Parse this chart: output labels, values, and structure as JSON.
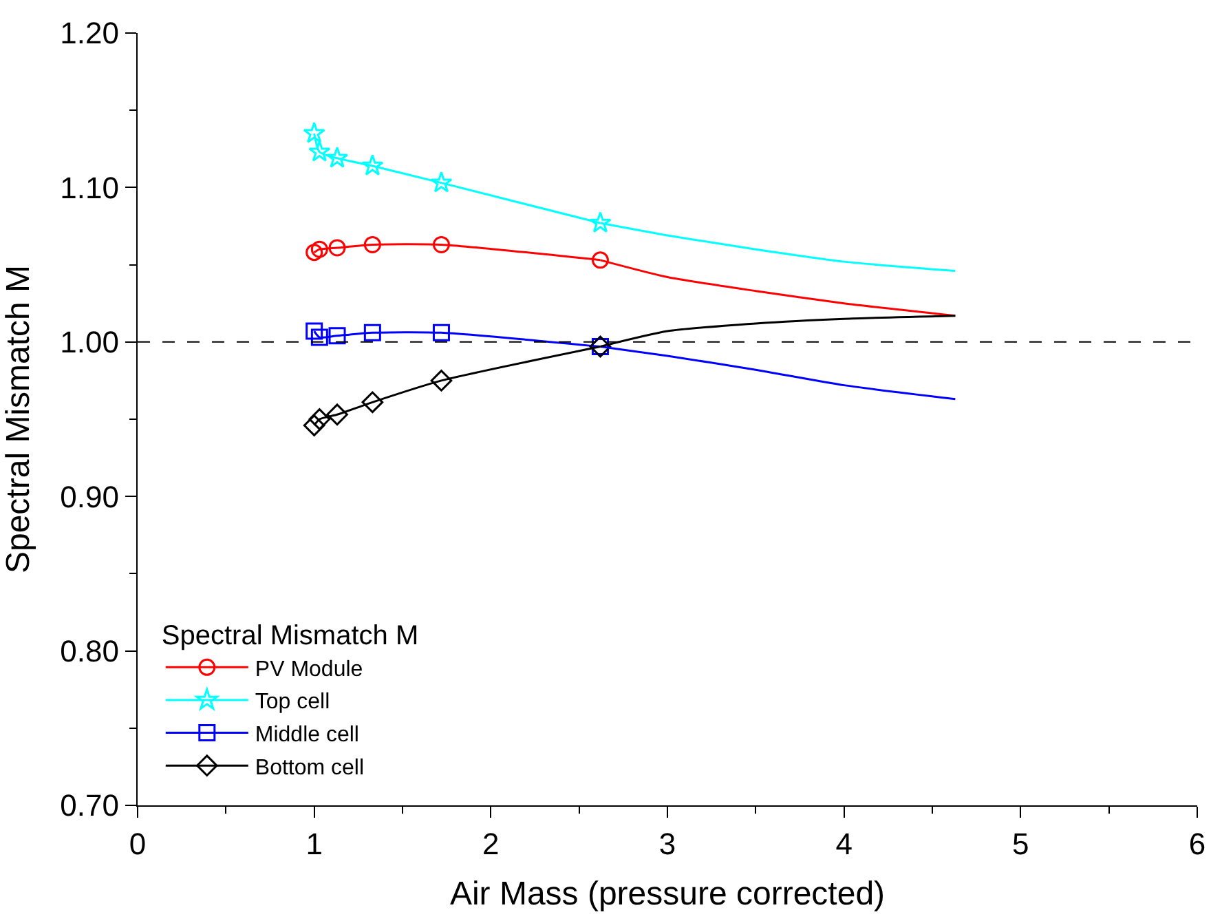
{
  "chart_data": {
    "type": "line",
    "xlabel": "Air Mass (pressure corrected)",
    "ylabel": "Spectral Mismatch M",
    "legend_title": "Spectral Mismatch M",
    "legend": "bottom left",
    "xlim": [
      0,
      6
    ],
    "xticks": [
      0,
      1,
      2,
      3,
      4,
      5,
      6
    ],
    "ylim": [
      0.7,
      1.2
    ],
    "yticks": [
      {
        "value": 0.7,
        "label": "0.70"
      },
      {
        "value": 0.8,
        "label": "0.80"
      },
      {
        "value": 0.9,
        "label": "0.90"
      },
      {
        "value": 1.0,
        "label": "1.00"
      },
      {
        "value": 1.1,
        "label": "1.10"
      },
      {
        "value": 1.2,
        "label": "1.20"
      }
    ],
    "ref_lines": [
      {
        "axis": "y",
        "value": 1.0,
        "color": "#000000",
        "line_style": "dashed"
      }
    ],
    "series": [
      {
        "name": "PV Module",
        "color": "#ff0000",
        "marker": "circle",
        "x": [
          1.0,
          1.03,
          1.13,
          1.33,
          1.72,
          2.62
        ],
        "values": [
          1.058,
          1.06,
          1.061,
          1.063,
          1.063,
          1.053
        ]
      },
      {
        "name": "Top cell",
        "color": "#00ffff",
        "marker": "star",
        "x": [
          1.0,
          1.03,
          1.13,
          1.33,
          1.72,
          2.62
        ],
        "values": [
          1.135,
          1.123,
          1.119,
          1.114,
          1.103,
          1.077
        ]
      },
      {
        "name": "Middle cell",
        "color": "#0000ff",
        "marker": "square",
        "x": [
          1.0,
          1.03,
          1.13,
          1.33,
          1.72,
          2.62
        ],
        "values": [
          1.007,
          1.003,
          1.004,
          1.006,
          1.006,
          0.997
        ]
      },
      {
        "name": "Bottom cell",
        "color": "#000000",
        "marker": "diamond",
        "x": [
          1.0,
          1.03,
          1.13,
          1.33,
          1.72,
          2.62
        ],
        "values": [
          0.946,
          0.95,
          0.953,
          0.961,
          0.975,
          0.997
        ]
      },
      {
        "color": "#ff0000",
        "marker": "none",
        "x": [
          2.62,
          3.0,
          3.5,
          4.0,
          4.63
        ],
        "values": [
          1.053,
          1.042,
          1.033,
          1.025,
          1.017
        ]
      },
      {
        "color": "#00ffff",
        "marker": "none",
        "x": [
          2.62,
          3.0,
          3.5,
          4.0,
          4.63
        ],
        "values": [
          1.077,
          1.069,
          1.06,
          1.052,
          1.046
        ]
      },
      {
        "color": "#0000ff",
        "marker": "none",
        "x": [
          2.62,
          3.0,
          3.5,
          4.0,
          4.63
        ],
        "values": [
          0.997,
          0.991,
          0.982,
          0.972,
          0.963
        ]
      },
      {
        "color": "#000000",
        "marker": "none",
        "x": [
          2.62,
          3.0,
          3.5,
          4.0,
          4.63
        ],
        "values": [
          0.997,
          1.007,
          1.012,
          1.015,
          1.017
        ]
      }
    ]
  }
}
